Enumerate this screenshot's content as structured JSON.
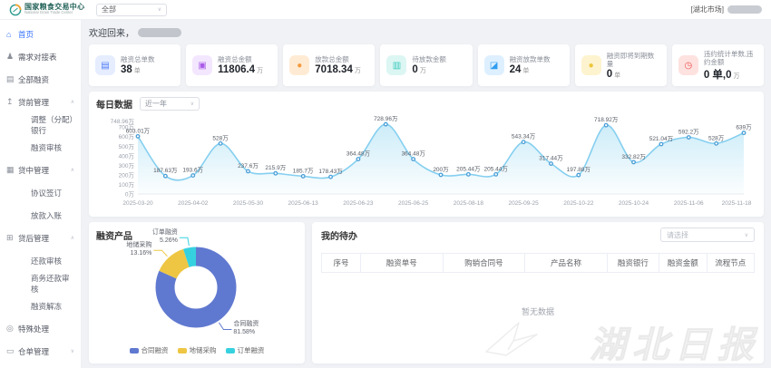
{
  "header": {
    "logo_title": "国家粮食交易中心",
    "logo_subtitle": "National Grain Trade Center",
    "market_select": "全部",
    "market_tag": "[湖北市场]"
  },
  "sidebar": {
    "items": [
      {
        "name": "home",
        "label": "首页",
        "icon": "home-icon",
        "glyph": "⌂",
        "type": "top",
        "active": true
      },
      {
        "name": "demand-table",
        "label": "需求对接表",
        "icon": "person-icon",
        "glyph": "♟",
        "type": "top"
      },
      {
        "name": "all-financing",
        "label": "全部融资",
        "icon": "document-icon",
        "glyph": "▤",
        "type": "top"
      },
      {
        "name": "pre-loan",
        "label": "贷前管理",
        "icon": "pre-loan-icon",
        "glyph": "↥",
        "type": "group",
        "chevron": "∧"
      },
      {
        "name": "adjust-bank",
        "label": "调整（分配）银行",
        "type": "sub"
      },
      {
        "name": "financing-review",
        "label": "融资审核",
        "type": "sub"
      },
      {
        "name": "in-loan",
        "label": "贷中管理",
        "icon": "calendar-icon",
        "glyph": "▦",
        "type": "group",
        "chevron": "∧"
      },
      {
        "name": "agreement-sign",
        "label": "协议签订",
        "type": "sub"
      },
      {
        "name": "disbursement-entry",
        "label": "放款入账",
        "type": "sub"
      },
      {
        "name": "post-loan",
        "label": "贷后管理",
        "icon": "bank-icon",
        "glyph": "⊞",
        "type": "group",
        "chevron": "∧"
      },
      {
        "name": "repayment-review",
        "label": "还款审核",
        "type": "sub"
      },
      {
        "name": "business-repayment-review",
        "label": "商务还款审核",
        "type": "sub"
      },
      {
        "name": "financing-unfreeze",
        "label": "融资解冻",
        "type": "sub"
      },
      {
        "name": "special-handling",
        "label": "特殊处理",
        "icon": "pin-icon",
        "glyph": "◎",
        "type": "top"
      },
      {
        "name": "warehouse-receipt",
        "label": "仓单管理",
        "icon": "folder-icon",
        "glyph": "▭",
        "type": "group",
        "chevron": "∨"
      }
    ]
  },
  "main": {
    "welcome_prefix": "欢迎回来，",
    "stat_cards": [
      {
        "label": "融资总单数",
        "value": "38",
        "unit": "单",
        "icon": "file-icon",
        "glyph": "▤",
        "fg": "#4e7ef7",
        "bg": "#e5edff"
      },
      {
        "label": "融资总金额",
        "value": "11806.4",
        "unit": "万",
        "icon": "money-bag-icon",
        "glyph": "▣",
        "fg": "#aa5ce8",
        "bg": "#f3e7ff"
      },
      {
        "label": "放款总金额",
        "value": "7018.34",
        "unit": "万",
        "icon": "coin-icon",
        "glyph": "●",
        "fg": "#f59a3e",
        "bg": "#ffebd4"
      },
      {
        "label": "待放款金额",
        "value": "0",
        "unit": "万",
        "icon": "wallet-icon",
        "glyph": "▥",
        "fg": "#38cabe",
        "bg": "#dcf6f3"
      },
      {
        "label": "融资放款单数",
        "value": "24",
        "unit": "单",
        "icon": "chart-icon",
        "glyph": "◪",
        "fg": "#2f9df0",
        "bg": "#def0ff"
      },
      {
        "label": "融资即将到期数量",
        "value": "0",
        "unit": "单",
        "icon": "due-coin-icon",
        "glyph": "●",
        "fg": "#edc53a",
        "bg": "#fdf3cf"
      },
      {
        "label": "违约统计单数,违约金额",
        "value": "0 单,0",
        "unit": "万",
        "icon": "clock-icon",
        "glyph": "◷",
        "fg": "#ef5350",
        "bg": "#fde2e0"
      }
    ],
    "daily": {
      "title": "每日数据",
      "range_select": "近一年"
    },
    "products": {
      "title": "融资产品"
    },
    "todo": {
      "title": "我的待办",
      "filter_placeholder": "请选择",
      "columns": [
        "序号",
        "融资单号",
        "购销合同号",
        "产品名称",
        "融资银行",
        "融资金额",
        "流程节点"
      ],
      "empty_text": "暂无数据"
    }
  },
  "chart_data": [
    {
      "type": "line",
      "title": "每日数据",
      "range": "近一年",
      "unit": "万",
      "x_tick_labels": [
        "2025-03-20",
        "2025-04-02",
        "2025-05-30",
        "2025-06-13",
        "2025-06-23",
        "2025-06-25",
        "2025-08-18",
        "2025-09-25",
        "2025-10-22",
        "2025-10-24",
        "2025-11-06",
        "2025-11-18"
      ],
      "values": [
        603.01,
        187.63,
        193.6,
        528,
        237.6,
        215.9,
        185.7,
        178.43,
        364.48,
        728.96,
        364.48,
        200,
        205.44,
        205.44,
        543.34,
        317.44,
        197.88,
        718.92,
        332.82,
        521.04,
        592.2,
        528,
        639
      ],
      "point_labels": [
        "603.01万",
        "187.63万",
        "193.6万",
        "528万",
        "237.6万",
        "215.9万",
        "185.7万",
        "178.43万",
        "364.48万",
        "728.96万",
        "364.48万",
        "200万",
        "205.44万",
        "205.44万",
        "543.34万",
        "317.44万",
        "197.88万",
        "718.92万",
        "332.82万",
        "521.04万",
        "592.2万",
        "528万",
        "639万"
      ],
      "y_ticks": [
        0,
        100,
        200,
        300,
        400,
        500,
        600,
        700
      ],
      "y_tick_suffix": "万",
      "y_max_label": "748.96万",
      "ylim": [
        0,
        748.96
      ],
      "grid": false,
      "legend_position": "none",
      "line_color": "#85cff0",
      "point_color": "#4a9fd8",
      "area_color": "#8ed5f0"
    },
    {
      "type": "pie",
      "title": "融资产品",
      "slices": [
        {
          "name": "合同融资",
          "pct": 81.58,
          "pct_label": "81.58%",
          "color": "#6079d0"
        },
        {
          "name": "地储采购",
          "pct": 13.16,
          "pct_label": "13.16%",
          "color": "#eec643"
        },
        {
          "name": "订单融资",
          "pct": 5.26,
          "pct_label": "5.26%",
          "color": "#36d1df"
        }
      ]
    }
  ],
  "watermark": "湖北日报"
}
